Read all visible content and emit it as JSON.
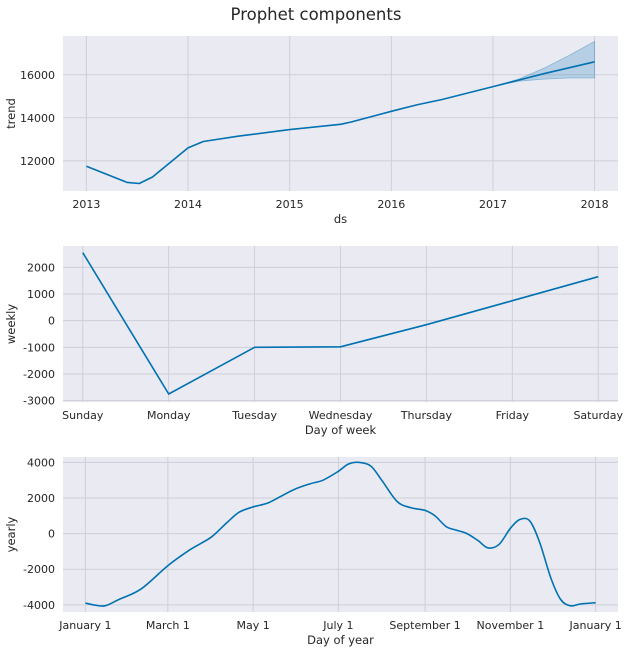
{
  "chart_data": {
    "title": "Prophet components",
    "panels": [
      {
        "type": "line",
        "ylabel": "trend",
        "xlabel": "ds",
        "x_ticks": [
          "2013",
          "2014",
          "2015",
          "2016",
          "2017",
          "2018"
        ],
        "y_ticks": [
          12000,
          14000,
          16000
        ],
        "ylim": [
          10600,
          17800
        ],
        "grid": true,
        "series": [
          {
            "x": [
              2013.0,
              2013.4,
              2013.52,
              2013.65,
              2014.0,
              2014.15,
              2014.5,
              2015.0,
              2015.5,
              2015.6,
              2016.0,
              2016.25,
              2016.5,
              2017.0,
              2017.5,
              2018.0
            ],
            "y": [
              11750,
              11000,
              10950,
              11250,
              12600,
              12900,
              13150,
              13450,
              13700,
              13800,
              14300,
              14600,
              14850,
              15450,
              16050,
              16600
            ]
          }
        ],
        "uncertainty": {
          "x": [
            2017.0,
            2017.25,
            2017.5,
            2017.75,
            2018.0
          ],
          "upper": [
            15450,
            15800,
            16300,
            16900,
            17550
          ],
          "lower": [
            15450,
            15700,
            15800,
            15850,
            15850
          ]
        }
      },
      {
        "type": "line",
        "ylabel": "weekly",
        "xlabel": "Day of week",
        "categories": [
          "Sunday",
          "Monday",
          "Tuesday",
          "Wednesday",
          "Thursday",
          "Friday",
          "Saturday"
        ],
        "y_ticks": [
          -3000,
          -2000,
          -1000,
          0,
          1000,
          2000
        ],
        "ylim": [
          -3050,
          2800
        ],
        "grid": true,
        "series": [
          {
            "values": [
              2550,
              -2750,
              -1000,
              -980,
              -150,
              750,
              1650
            ]
          }
        ]
      },
      {
        "type": "line",
        "ylabel": "yearly",
        "xlabel": "Day of year",
        "x_ticks": [
          "January 1",
          "March 1",
          "May 1",
          "July 1",
          "September 1",
          "November 1",
          "January 1"
        ],
        "y_ticks": [
          -4000,
          -2000,
          0,
          2000,
          4000
        ],
        "ylim": [
          -4400,
          4300
        ],
        "grid": true,
        "series": [
          {
            "x": [
              0,
              6,
              14,
              24,
              40,
              59,
              75,
              90,
              101,
              110,
              120,
              130,
              140,
              150,
              161,
              170,
              181,
              188,
              195,
              204,
              212,
              223,
              233,
              243,
              250,
              258,
              265,
              273,
              281,
              288,
              296,
              304,
              311,
              318,
              325,
              333,
              340,
              347,
              354,
              365
            ],
            "y": [
              -3900,
              -4000,
              -4050,
              -3700,
              -3100,
              -1800,
              -900,
              -200,
              600,
              1200,
              1500,
              1700,
              2100,
              2500,
              2800,
              3000,
              3500,
              3900,
              4000,
              3800,
              3000,
              1800,
              1450,
              1300,
              1000,
              400,
              200,
              0,
              -400,
              -800,
              -600,
              300,
              800,
              700,
              -500,
              -2500,
              -3700,
              -4050,
              -3950,
              -3880
            ]
          }
        ]
      }
    ]
  },
  "colors": {
    "line": "#0072b2",
    "band": "#0072b2",
    "background": "#eaeaf2",
    "grid": "#cfcfd8"
  }
}
